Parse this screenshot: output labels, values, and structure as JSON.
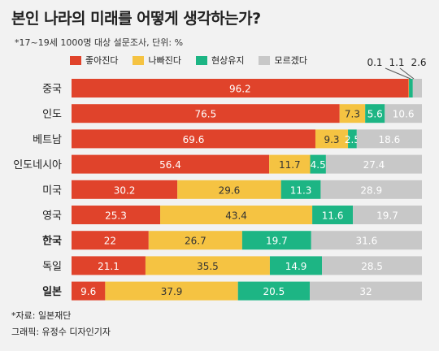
{
  "title": "본인 나라의 미래를 어떻게 생각하는가?",
  "subtitle": "*17~19세 1000명 대상 설문조사, 단위: %",
  "source": "*자료: 일본재단",
  "credit": "그래픽: 유정수 디자인기자",
  "top_labels": {
    "a": "0.1",
    "b": "1.1",
    "c": "2.6"
  },
  "chart_data": {
    "type": "bar",
    "orientation": "horizontal",
    "stacked": true,
    "categories": [
      "중국",
      "인도",
      "베트남",
      "인도네시아",
      "미국",
      "영국",
      "한국",
      "독일",
      "일본"
    ],
    "bold_categories": [
      "한국",
      "일본"
    ],
    "series": [
      {
        "name": "좋아진다",
        "color": "#e0432b",
        "values": [
          96.2,
          76.5,
          69.6,
          56.4,
          30.2,
          25.3,
          22,
          21.1,
          9.6
        ],
        "labels": [
          "96.2",
          "76.5",
          "69.6",
          "56.4",
          "30.2",
          "25.3",
          "22",
          "21.1",
          "9.6"
        ]
      },
      {
        "name": "나빠진다",
        "color": "#f5c342",
        "values": [
          0.1,
          7.3,
          9.3,
          11.7,
          29.6,
          43.4,
          26.7,
          35.5,
          37.9
        ],
        "labels": [
          "",
          "7.3",
          "9.3",
          "11.7",
          "29.6",
          "43.4",
          "26.7",
          "35.5",
          "37.9"
        ]
      },
      {
        "name": "현상유지",
        "color": "#1db584",
        "values": [
          1.1,
          5.6,
          2.5,
          4.5,
          11.3,
          11.6,
          19.7,
          14.9,
          20.5
        ],
        "labels": [
          "",
          "5.6",
          "2.5",
          "4.5",
          "11.3",
          "11.6",
          "19.7",
          "14.9",
          "20.5"
        ]
      },
      {
        "name": "모르겠다",
        "color": "#c8c8c8",
        "values": [
          2.6,
          10.6,
          18.6,
          27.4,
          28.9,
          19.7,
          31.6,
          28.5,
          32
        ],
        "labels": [
          "",
          "10.6",
          "18.6",
          "27.4",
          "28.9",
          "19.7",
          "31.6",
          "28.5",
          "32"
        ]
      }
    ],
    "xlim": [
      0,
      100
    ]
  }
}
